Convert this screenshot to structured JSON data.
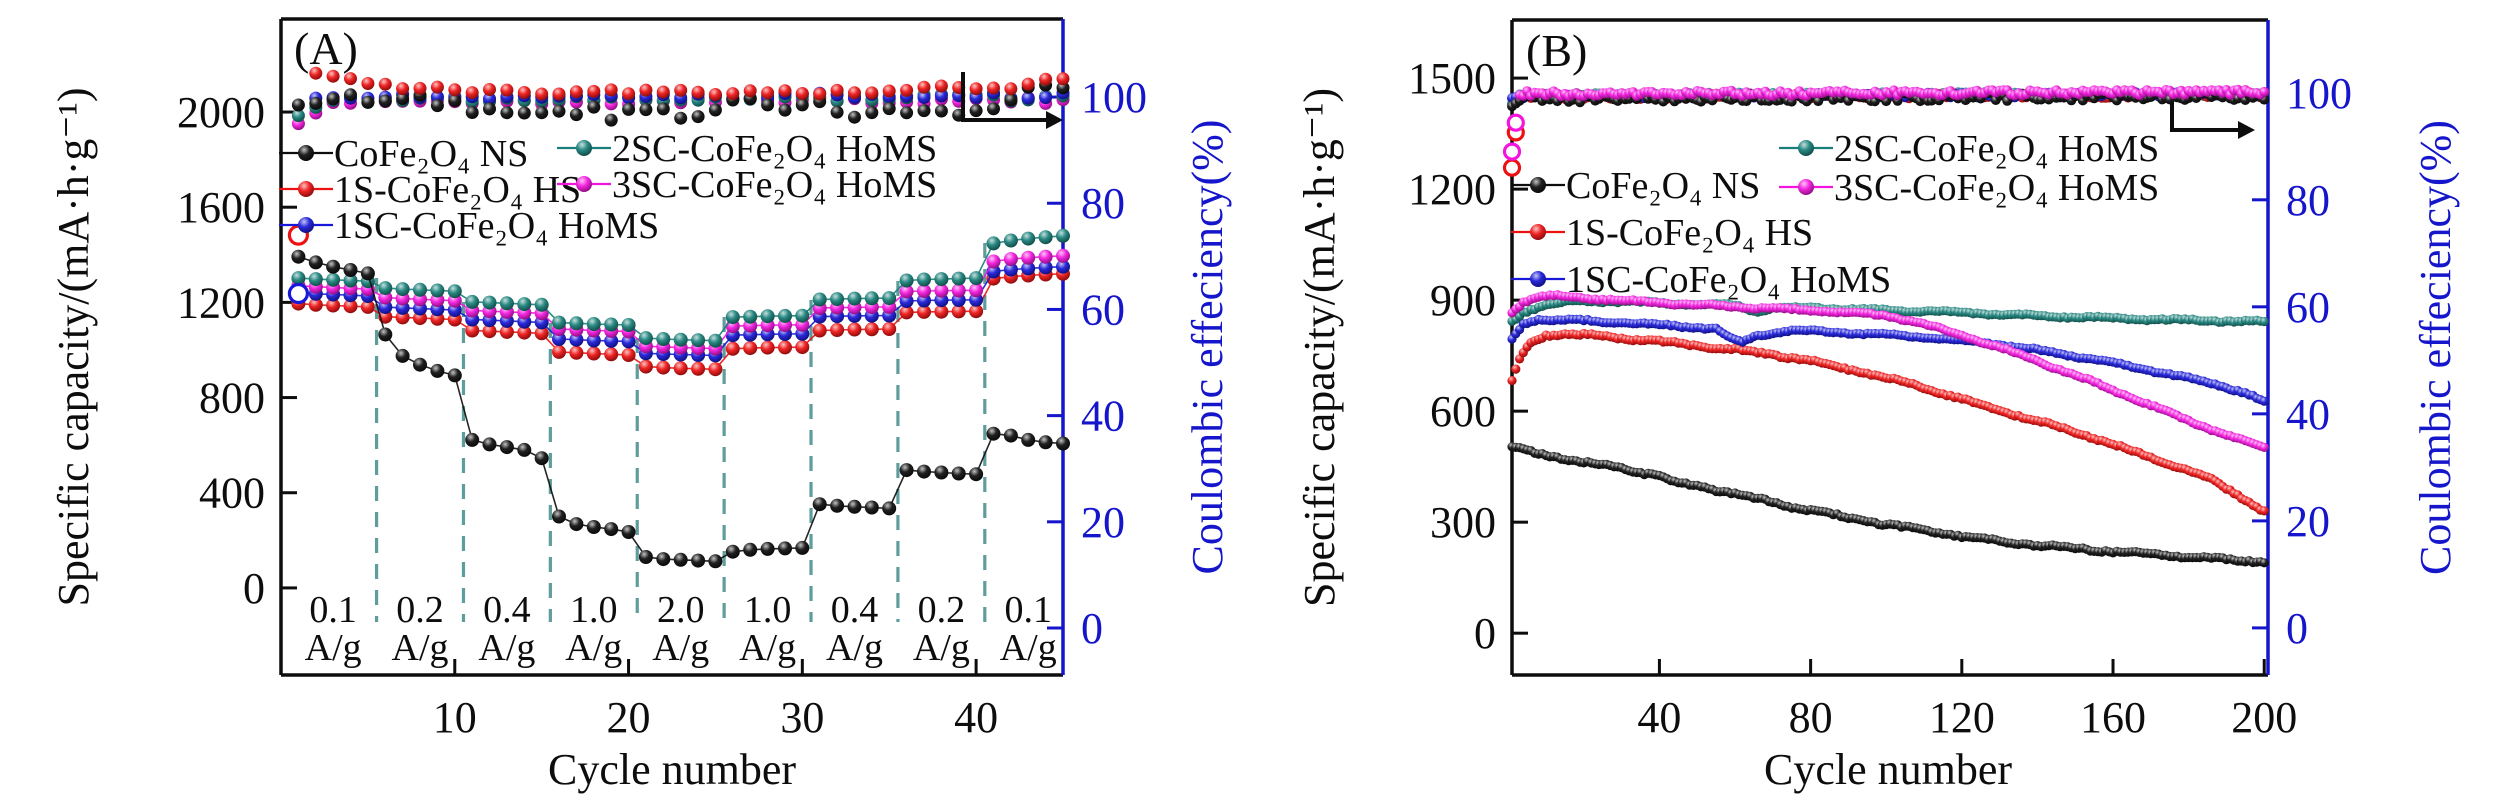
{
  "figure": {
    "background": "#ffffff",
    "description_colors": {
      "axis_right_blue": "#1515cc",
      "divider_teal": "#5e9d9b"
    }
  },
  "chart_data": [
    {
      "id": "A",
      "type": "scatter",
      "panel_label": "(A)",
      "xlabel": "Cycle number",
      "ylabel_left": "Specific capacity/(mA·h·g⁻¹)",
      "ylabel_right": "Coulombic effeciency(%)",
      "x_ticks": [
        10,
        20,
        30,
        40
      ],
      "y_ticks_left": [
        0,
        400,
        800,
        1200,
        1600,
        2000
      ],
      "y_ticks_right": [
        0,
        20,
        40,
        60,
        80,
        100
      ],
      "xlim": [
        0,
        45
      ],
      "ylim_left": [
        -366,
        2391
      ],
      "ylim_right": [
        -8.85,
        114.7
      ],
      "legend_position": "upper-left-two-columns",
      "grid": false,
      "dividers_x": [
        5.5,
        10.5,
        15.5,
        20.5,
        25.5,
        30.5,
        35.5,
        40.5
      ],
      "rate_labels": [
        {
          "text": "0.1",
          "unit": "A/g",
          "x": 3
        },
        {
          "text": "0.2",
          "unit": "A/g",
          "x": 8
        },
        {
          "text": "0.4",
          "unit": "A/g",
          "x": 13
        },
        {
          "text": "1.0",
          "unit": "A/g",
          "x": 18
        },
        {
          "text": "2.0",
          "unit": "A/g",
          "x": 23
        },
        {
          "text": "1.0",
          "unit": "A/g",
          "x": 28
        },
        {
          "text": "0.4",
          "unit": "A/g",
          "x": 33
        },
        {
          "text": "0.2",
          "unit": "A/g",
          "x": 38
        },
        {
          "text": "0.1",
          "unit": "A/g",
          "x": 43
        }
      ],
      "series": [
        {
          "name": "CoFe₂O₄ NS",
          "color": "#0d0d0d",
          "capacity": [
            1392,
            1368,
            1350,
            1336,
            1322,
            1065,
            975,
            938,
            912,
            893,
            622,
            603,
            592,
            580,
            545,
            300,
            268,
            256,
            247,
            235,
            130,
            121,
            118,
            115,
            112,
            152,
            160,
            164,
            166,
            168,
            352,
            345,
            341,
            338,
            334,
            495,
            489,
            485,
            481,
            478,
            648,
            640,
            622,
            612,
            607
          ],
          "efficiency_keypoints": [
            [
              1,
              98.5
            ],
            [
              6,
              100
            ],
            [
              12,
              98
            ],
            [
              18,
              97
            ],
            [
              23,
              96.5
            ],
            [
              27,
              99
            ],
            [
              33,
              97.5
            ],
            [
              39,
              97
            ],
            [
              43,
              101
            ],
            [
              45,
              101.5
            ]
          ]
        },
        {
          "name": "1S-CoFe₂O₄ HS",
          "color": "#ee1111",
          "capacity": [
            1195,
            1190,
            1187,
            1184,
            1181,
            1140,
            1137,
            1134,
            1131,
            1128,
            1082,
            1079,
            1076,
            1073,
            1070,
            992,
            988,
            985,
            982,
            979,
            930,
            926,
            923,
            921,
            919,
            1005,
            1008,
            1010,
            1011,
            1012,
            1082,
            1084,
            1086,
            1087,
            1088,
            1158,
            1160,
            1161,
            1162,
            1163,
            1300,
            1308,
            1313,
            1317,
            1320
          ],
          "efficiency_keypoints": [
            [
              1,
              74
            ],
            [
              2,
              104.5
            ],
            [
              3,
              103.5
            ],
            [
              5,
              102.5
            ],
            [
              8,
              101.5
            ],
            [
              15,
              101
            ],
            [
              30,
              100.8
            ],
            [
              42,
              102
            ],
            [
              45,
              103.5
            ]
          ]
        },
        {
          "name": "1SC-CoFe₂O₄ HoMS",
          "color": "#1718d8",
          "capacity": [
            1240,
            1236,
            1233,
            1230,
            1227,
            1180,
            1177,
            1174,
            1171,
            1168,
            1128,
            1125,
            1122,
            1119,
            1116,
            1046,
            1043,
            1040,
            1038,
            1036,
            986,
            983,
            981,
            979,
            977,
            1062,
            1064,
            1066,
            1067,
            1068,
            1140,
            1142,
            1143,
            1144,
            1145,
            1206,
            1208,
            1209,
            1210,
            1211,
            1330,
            1338,
            1343,
            1347,
            1350
          ],
          "efficiency_keypoints": [
            [
              1,
              63
            ],
            [
              2,
              99.8
            ],
            [
              10,
              100.2
            ],
            [
              45,
              100.3
            ]
          ]
        },
        {
          "name": "2SC-CoFe₂O₄ HoMS",
          "color": "#187f78",
          "capacity": [
            1302,
            1298,
            1295,
            1292,
            1289,
            1260,
            1256,
            1253,
            1250,
            1247,
            1202,
            1199,
            1196,
            1193,
            1190,
            1115,
            1112,
            1109,
            1107,
            1105,
            1050,
            1046,
            1043,
            1041,
            1039,
            1138,
            1140,
            1142,
            1143,
            1144,
            1212,
            1214,
            1216,
            1217,
            1218,
            1292,
            1296,
            1298,
            1300,
            1302,
            1448,
            1460,
            1468,
            1474,
            1480
          ],
          "efficiency_keypoints": [
            [
              1,
              96.5
            ],
            [
              3,
              99.6
            ],
            [
              45,
              99.9
            ]
          ]
        },
        {
          "name": "3SC-CoFe₂O₄ HoMS",
          "color": "#f414dd",
          "capacity": [
            1270,
            1266,
            1262,
            1259,
            1256,
            1220,
            1216,
            1213,
            1210,
            1207,
            1166,
            1163,
            1160,
            1157,
            1154,
            1088,
            1085,
            1082,
            1080,
            1078,
            1016,
            1013,
            1010,
            1008,
            1006,
            1100,
            1102,
            1104,
            1105,
            1106,
            1176,
            1178,
            1179,
            1180,
            1181,
            1246,
            1248,
            1249,
            1250,
            1251,
            1372,
            1382,
            1388,
            1392,
            1396
          ],
          "efficiency_keypoints": [
            [
              1,
              95
            ],
            [
              3,
              99
            ],
            [
              45,
              99.4
            ]
          ]
        }
      ]
    },
    {
      "id": "B",
      "type": "scatter",
      "panel_label": "(B)",
      "xlabel": "Cycle number",
      "ylabel_left": "Specific capacity/(mA·h·g⁻¹)",
      "ylabel_right": "Coulombic effeciency(%)",
      "x_ticks": [
        40,
        80,
        120,
        160,
        200
      ],
      "y_ticks_left": [
        0,
        300,
        600,
        900,
        1200,
        1500
      ],
      "y_ticks_right": [
        0,
        20,
        40,
        60,
        80,
        100
      ],
      "xlim": [
        1,
        201
      ],
      "ylim_left": [
        -113,
        1657
      ],
      "ylim_right": [
        -8.8,
        113.6
      ],
      "legend_position": "upper-left-two-columns",
      "grid": false,
      "series": [
        {
          "name": "CoFe₂O₄ NS",
          "color": "#0d0d0d",
          "capacity_keypoints": [
            [
              1,
              505
            ],
            [
              5,
              492
            ],
            [
              10,
              480
            ],
            [
              20,
              463
            ],
            [
              30,
              447
            ],
            [
              36,
              432
            ],
            [
              40,
              428
            ],
            [
              44,
              408
            ],
            [
              50,
              398
            ],
            [
              60,
              377
            ],
            [
              70,
              353
            ],
            [
              80,
              332
            ],
            [
              90,
              312
            ],
            [
              100,
              294
            ],
            [
              110,
              277
            ],
            [
              120,
              262
            ],
            [
              130,
              249
            ],
            [
              140,
              238
            ],
            [
              150,
              229
            ],
            [
              160,
              221
            ],
            [
              170,
              213
            ],
            [
              180,
              206
            ],
            [
              190,
              199
            ],
            [
              200,
              193
            ]
          ],
          "efficiency_keypoints": [
            [
              1,
              97.5
            ],
            [
              4,
              99
            ],
            [
              200,
              99.4
            ]
          ]
        },
        {
          "name": "1S-CoFe₂O₄ HS",
          "color": "#ee1111",
          "capacity_keypoints": [
            [
              1,
              680
            ],
            [
              3,
              740
            ],
            [
              6,
              785
            ],
            [
              10,
              805
            ],
            [
              15,
              810
            ],
            [
              25,
              802
            ],
            [
              35,
              793
            ],
            [
              45,
              783
            ],
            [
              55,
              772
            ],
            [
              65,
              760
            ],
            [
              75,
              745
            ],
            [
              85,
              725
            ],
            [
              95,
              703
            ],
            [
              105,
              678
            ],
            [
              115,
              648
            ],
            [
              125,
              617
            ],
            [
              135,
              588
            ],
            [
              145,
              558
            ],
            [
              155,
              528
            ],
            [
              160,
              510
            ],
            [
              165,
              492
            ],
            [
              175,
              458
            ],
            [
              185,
              420
            ],
            [
              192,
              380
            ],
            [
              200,
              328
            ]
          ],
          "efficiency_keypoints": [
            [
              1,
              86
            ],
            [
              3,
              99.2
            ],
            [
              200,
              99.6
            ]
          ]
        },
        {
          "name": "1SC-CoFe₂O₄ HoMS",
          "color": "#1718d8",
          "capacity_keypoints": [
            [
              1,
              795
            ],
            [
              4,
              835
            ],
            [
              8,
              848
            ],
            [
              15,
              847
            ],
            [
              25,
              842
            ],
            [
              35,
              836
            ],
            [
              45,
              830
            ],
            [
              55,
              822
            ],
            [
              58,
              800
            ],
            [
              62,
              785
            ],
            [
              66,
              805
            ],
            [
              75,
              818
            ],
            [
              85,
              814
            ],
            [
              95,
              809
            ],
            [
              105,
              803
            ],
            [
              115,
              795
            ],
            [
              125,
              786
            ],
            [
              135,
              773
            ],
            [
              145,
              757
            ],
            [
              155,
              740
            ],
            [
              165,
              720
            ],
            [
              175,
              700
            ],
            [
              185,
              678
            ],
            [
              195,
              650
            ],
            [
              200,
              625
            ]
          ],
          "efficiency_keypoints": [
            [
              1,
              99
            ],
            [
              3,
              99.4
            ],
            [
              200,
              99.7
            ]
          ]
        },
        {
          "name": "2SC-CoFe₂O₄ HoMS",
          "color": "#187f78",
          "capacity_keypoints": [
            [
              1,
              842
            ],
            [
              4,
              868
            ],
            [
              8,
              882
            ],
            [
              14,
              893
            ],
            [
              20,
              898
            ],
            [
              30,
              896
            ],
            [
              40,
              892
            ],
            [
              50,
              889
            ],
            [
              60,
              886
            ],
            [
              66,
              868
            ],
            [
              70,
              880
            ],
            [
              80,
              879
            ],
            [
              90,
              876
            ],
            [
              100,
              873
            ],
            [
              110,
              870
            ],
            [
              120,
              866
            ],
            [
              130,
              862
            ],
            [
              140,
              858
            ],
            [
              150,
              854
            ],
            [
              160,
              851
            ],
            [
              170,
              848
            ],
            [
              180,
              846
            ],
            [
              190,
              844
            ],
            [
              200,
              841
            ]
          ],
          "efficiency_keypoints": [
            [
              1,
              98
            ],
            [
              3,
              99.5
            ],
            [
              200,
              99.8
            ]
          ]
        },
        {
          "name": "3SC-CoFe₂O₄ HoMS",
          "color": "#f414dd",
          "capacity_keypoints": [
            [
              1,
              868
            ],
            [
              4,
              895
            ],
            [
              8,
              908
            ],
            [
              12,
              912
            ],
            [
              20,
              906
            ],
            [
              30,
              899
            ],
            [
              40,
              893
            ],
            [
              50,
              887
            ],
            [
              60,
              882
            ],
            [
              70,
              877
            ],
            [
              80,
              872
            ],
            [
              90,
              867
            ],
            [
              100,
              858
            ],
            [
              105,
              848
            ],
            [
              110,
              835
            ],
            [
              115,
              820
            ],
            [
              120,
              805
            ],
            [
              130,
              772
            ],
            [
              140,
              735
            ],
            [
              150,
              697
            ],
            [
              160,
              657
            ],
            [
              170,
              616
            ],
            [
              180,
              574
            ],
            [
              190,
              536
            ],
            [
              200,
              502
            ]
          ],
          "efficiency_keypoints": [
            [
              1,
              89
            ],
            [
              3,
              99.8
            ],
            [
              200,
              100.1
            ]
          ]
        }
      ]
    }
  ]
}
